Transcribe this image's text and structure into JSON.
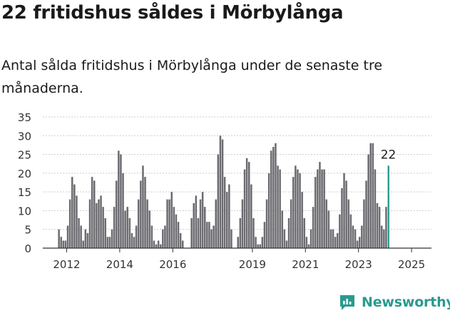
{
  "header": {
    "title": "22 fritidshus såldes i Mörbylånga",
    "subtitle": "Antal sålda fritidshus i Mörbylånga under de senaste tre månaderna."
  },
  "footer": {
    "brand": "Newsworthy",
    "logo_icon": "newsworthy-chart-logo-icon"
  },
  "colors": {
    "bar": "#6b6b70",
    "highlight": "#2a9a8e",
    "axis": "#333333",
    "grid": "#cccccc"
  },
  "chart_data": {
    "type": "bar",
    "title": "",
    "xlabel": "",
    "ylabel": "",
    "ylim": [
      0,
      35
    ],
    "y_ticks": [
      0,
      5,
      10,
      15,
      20,
      25,
      30,
      35
    ],
    "x_tick_labels": [
      "2012",
      "2014",
      "2016",
      "2019",
      "2021",
      "2023",
      "2025"
    ],
    "x_tick_positions": [
      2012.25,
      2014.25,
      2016.25,
      2019.25,
      2021.25,
      2023.25,
      2025.25
    ],
    "x_range": [
      2011.35,
      2026.0
    ],
    "grid": true,
    "legend": "none",
    "start_year": 2011,
    "start_month": 12,
    "values": [
      5,
      3,
      2,
      2,
      6,
      13,
      19,
      17,
      14,
      8,
      6,
      2,
      5,
      4,
      13,
      19,
      18,
      12,
      13,
      14,
      11,
      8,
      3,
      3,
      5,
      11,
      18,
      26,
      25,
      20,
      10,
      11,
      8,
      4,
      3,
      6,
      13,
      18,
      22,
      19,
      13,
      10,
      6,
      2,
      1,
      2,
      1,
      5,
      6,
      13,
      13,
      15,
      11,
      9,
      7,
      4,
      2,
      0,
      0,
      0,
      8,
      12,
      14,
      8,
      13,
      15,
      11,
      7,
      7,
      5,
      6,
      13,
      25,
      30,
      29,
      19,
      15,
      17,
      5,
      0,
      0,
      3,
      8,
      13,
      21,
      24,
      23,
      17,
      8,
      3,
      1,
      1,
      3,
      7,
      13,
      20,
      26,
      27,
      28,
      22,
      21,
      10,
      5,
      2,
      8,
      13,
      19,
      22,
      21,
      20,
      15,
      8,
      3,
      1,
      5,
      11,
      19,
      21,
      23,
      21,
      21,
      13,
      10,
      5,
      5,
      3,
      4,
      9,
      16,
      20,
      18,
      13,
      9,
      6,
      5,
      2,
      3,
      6,
      13,
      18,
      25,
      28,
      28,
      21,
      12,
      11,
      6,
      5,
      11,
      22
    ],
    "highlight_last": true,
    "data_label": "22"
  }
}
